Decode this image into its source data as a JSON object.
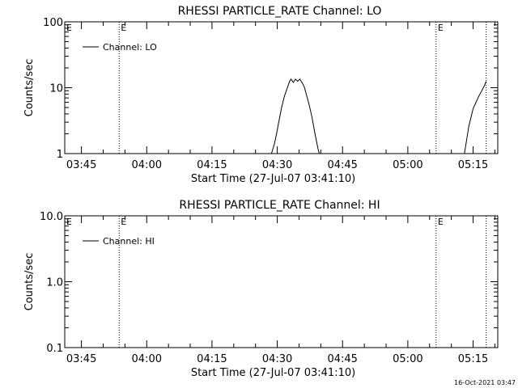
{
  "footer_timestamp": "16-Oct-2021 03:47",
  "chart_data": [
    {
      "type": "line",
      "title": "RHESSI PARTICLE_RATE Channel: LO",
      "xlabel": "Start Time (27-Jul-07 03:41:10)",
      "ylabel": "Counts/sec",
      "yscale": "log",
      "xlim": [
        "03:41:10",
        "05:20:40"
      ],
      "ylim": [
        1,
        100
      ],
      "x_ticks": [
        "03:45",
        "04:00",
        "04:15",
        "04:30",
        "04:45",
        "05:00",
        "05:15"
      ],
      "y_ticks": [
        "1",
        "10",
        "100"
      ],
      "legend": {
        "label": "Channel: LO",
        "position": "top-left"
      },
      "markers": [
        {
          "time": "03:53:40",
          "label": "E"
        },
        {
          "time": "05:06:30",
          "label": "E"
        },
        {
          "time": "05:18:00",
          "label": ""
        }
      ],
      "series": [
        {
          "name": "Channel: LO",
          "segments": [
            [
              [
                "04:28:40",
                1.0
              ],
              [
                "04:29:20",
                1.4
              ],
              [
                "04:29:50",
                2.0
              ],
              [
                "04:30:20",
                3.0
              ],
              [
                "04:31:00",
                5.0
              ],
              [
                "04:31:40",
                7.5
              ],
              [
                "04:32:20",
                10.0
              ],
              [
                "04:32:50",
                12.5
              ],
              [
                "04:33:10",
                13.5
              ],
              [
                "04:33:40",
                12.0
              ],
              [
                "04:34:10",
                13.5
              ],
              [
                "04:34:40",
                12.5
              ],
              [
                "04:35:10",
                13.5
              ],
              [
                "04:35:40",
                12.0
              ],
              [
                "04:36:10",
                10.5
              ],
              [
                "04:36:40",
                8.0
              ],
              [
                "04:37:20",
                5.5
              ],
              [
                "04:38:00",
                3.5
              ],
              [
                "04:38:40",
                2.0
              ],
              [
                "04:39:20",
                1.2
              ],
              [
                "04:39:40",
                1.0
              ]
            ],
            [
              [
                "05:13:00",
                1.0
              ],
              [
                "05:13:30",
                1.6
              ],
              [
                "05:14:00",
                2.6
              ],
              [
                "05:14:30",
                3.5
              ],
              [
                "05:15:00",
                4.8
              ],
              [
                "05:15:40",
                6.0
              ],
              [
                "05:16:20",
                7.5
              ],
              [
                "05:17:00",
                9.0
              ],
              [
                "05:17:40",
                11.0
              ],
              [
                "05:18:00",
                12.5
              ]
            ]
          ]
        }
      ]
    },
    {
      "type": "line",
      "title": "RHESSI PARTICLE_RATE Channel: HI",
      "xlabel": "Start Time (27-Jul-07 03:41:10)",
      "ylabel": "Counts/sec",
      "yscale": "log",
      "xlim": [
        "03:41:10",
        "05:20:40"
      ],
      "ylim": [
        0.1,
        10.0
      ],
      "x_ticks": [
        "03:45",
        "04:00",
        "04:15",
        "04:30",
        "04:45",
        "05:00",
        "05:15"
      ],
      "y_ticks": [
        "0.1",
        "1.0",
        "10.0"
      ],
      "legend": {
        "label": "Channel: HI",
        "position": "top-left"
      },
      "markers": [
        {
          "time": "03:53:40",
          "label": "E"
        },
        {
          "time": "05:06:30",
          "label": "E"
        },
        {
          "time": "05:18:00",
          "label": ""
        }
      ],
      "series": [
        {
          "name": "Channel: HI",
          "segments": []
        }
      ]
    }
  ]
}
